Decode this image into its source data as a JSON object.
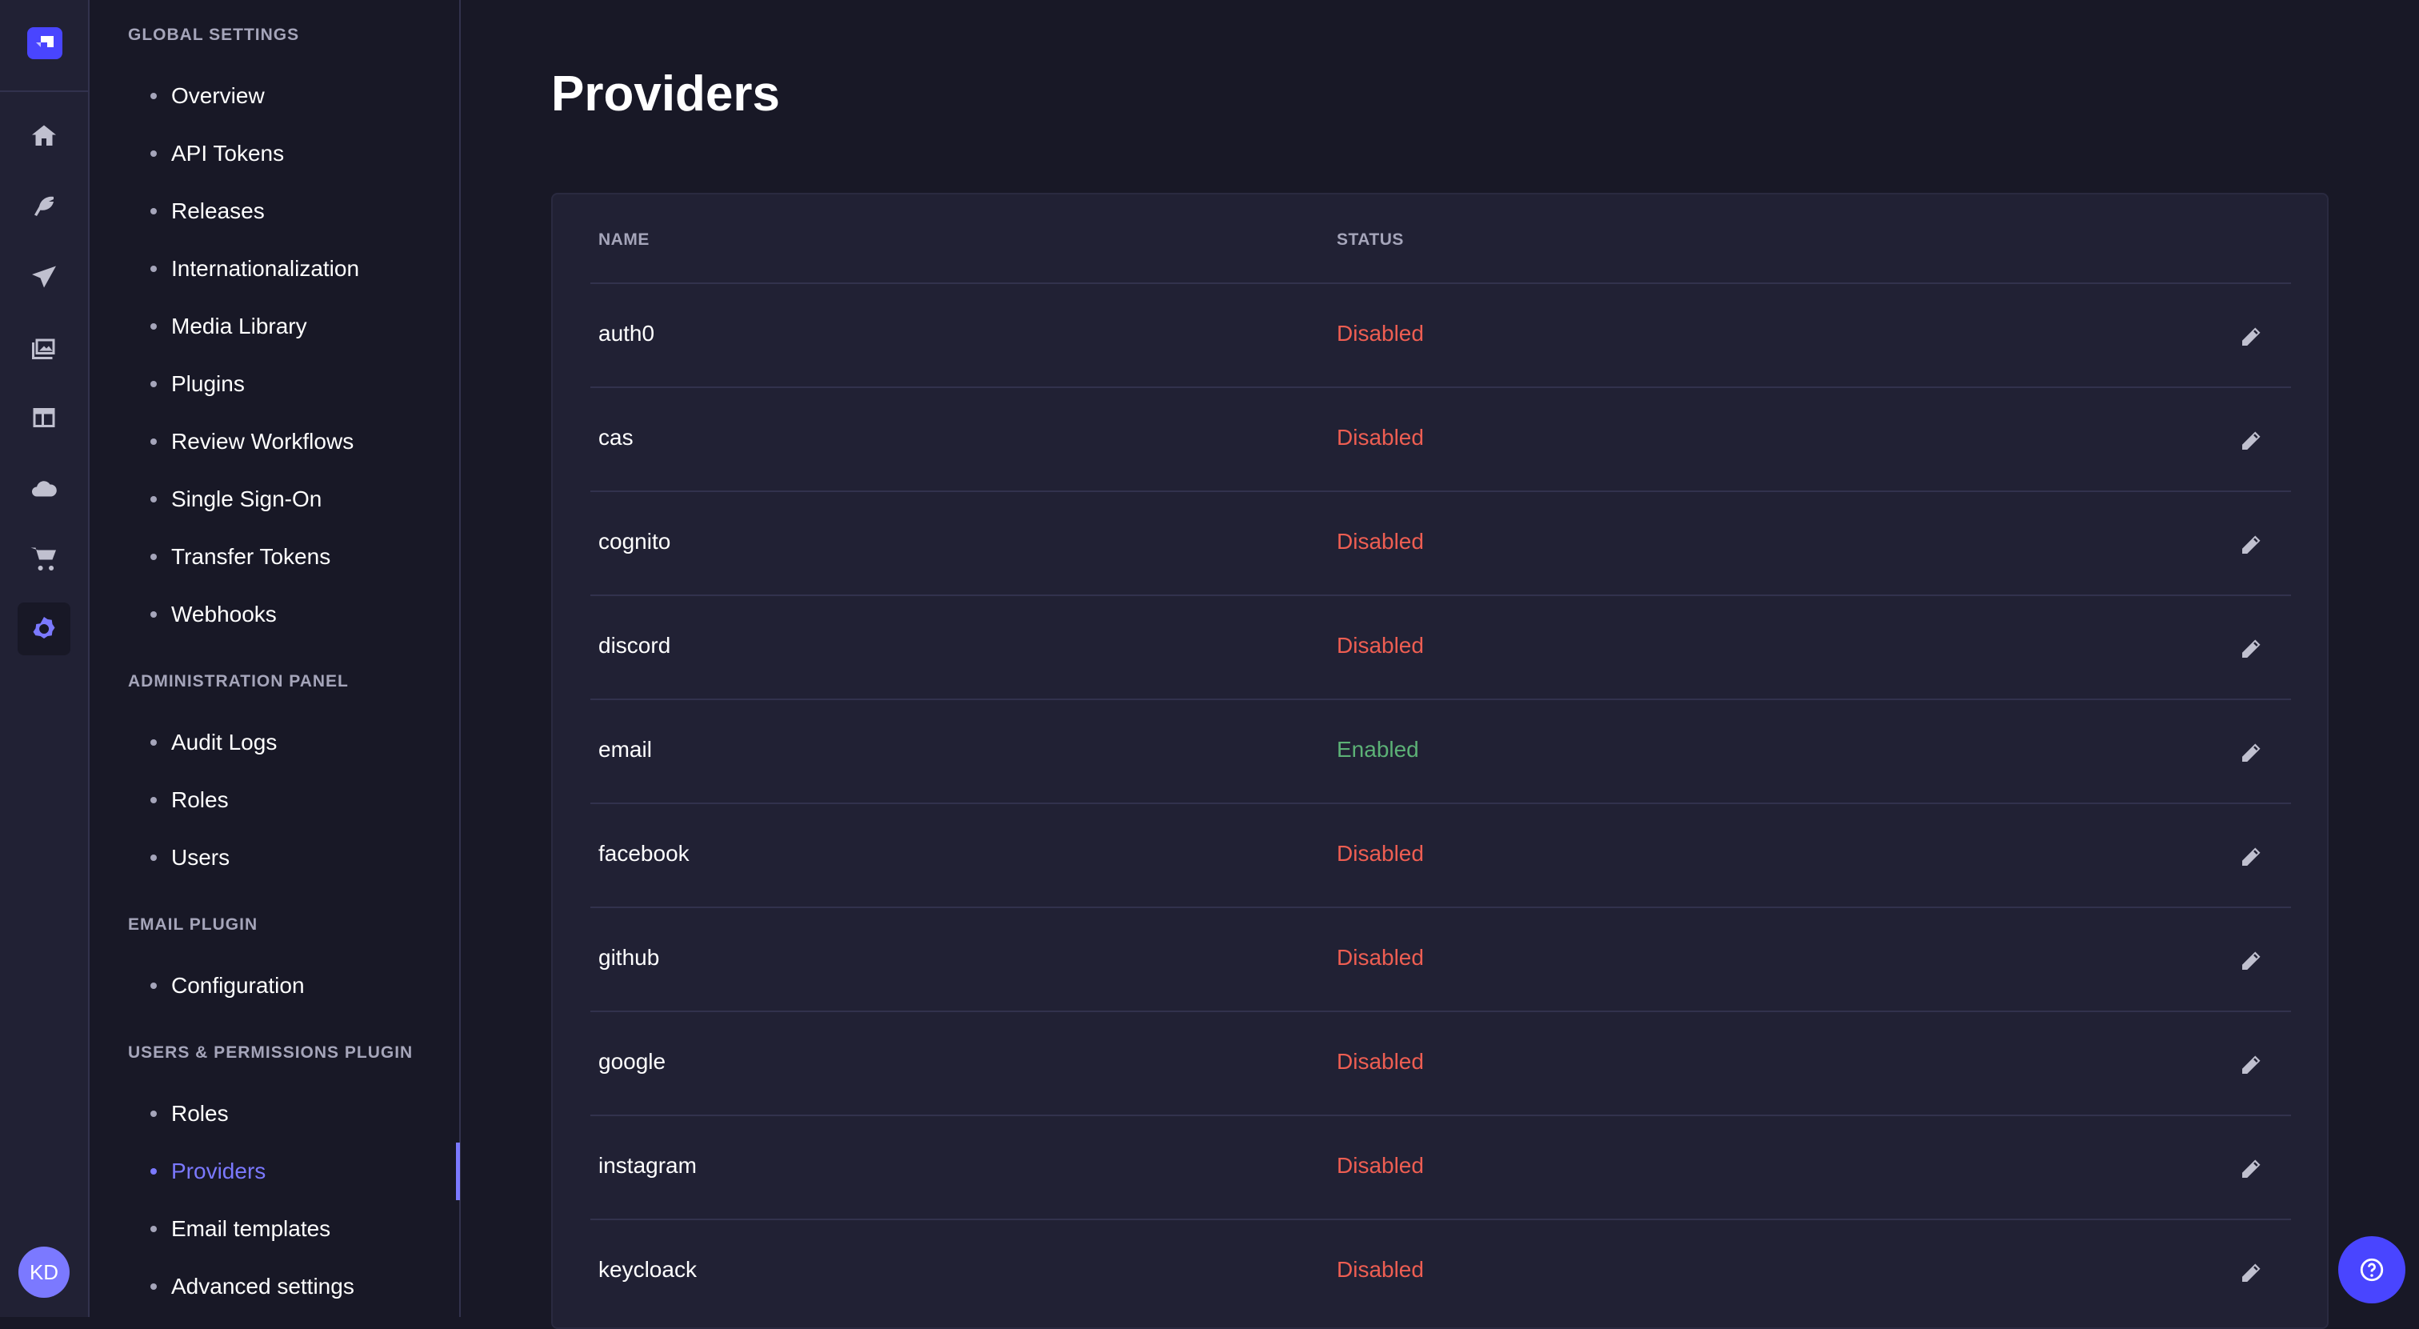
{
  "nav": {
    "icons": [
      "home-icon",
      "feather-icon",
      "paper-plane-icon",
      "images-icon",
      "layout-icon",
      "cloud-icon",
      "cart-icon",
      "gear-icon"
    ],
    "active": "gear-icon",
    "avatar": "KD"
  },
  "subnav": {
    "sections": [
      {
        "title": "GLOBAL SETTINGS",
        "items": [
          "Overview",
          "API Tokens",
          "Releases",
          "Internationalization",
          "Media Library",
          "Plugins",
          "Review Workflows",
          "Single Sign-On",
          "Transfer Tokens",
          "Webhooks"
        ]
      },
      {
        "title": "ADMINISTRATION PANEL",
        "items": [
          "Audit Logs",
          "Roles",
          "Users"
        ]
      },
      {
        "title": "EMAIL PLUGIN",
        "items": [
          "Configuration"
        ]
      },
      {
        "title": "USERS & PERMISSIONS PLUGIN",
        "items": [
          "Roles",
          "Providers",
          "Email templates",
          "Advanced settings"
        ]
      }
    ],
    "active": "Providers"
  },
  "page": {
    "title": "Providers"
  },
  "table": {
    "headers": {
      "name": "NAME",
      "status": "STATUS"
    },
    "rows": [
      {
        "name": "auth0",
        "status": "Disabled"
      },
      {
        "name": "cas",
        "status": "Disabled"
      },
      {
        "name": "cognito",
        "status": "Disabled"
      },
      {
        "name": "discord",
        "status": "Disabled"
      },
      {
        "name": "email",
        "status": "Enabled"
      },
      {
        "name": "facebook",
        "status": "Disabled"
      },
      {
        "name": "github",
        "status": "Disabled"
      },
      {
        "name": "google",
        "status": "Disabled"
      },
      {
        "name": "instagram",
        "status": "Disabled"
      },
      {
        "name": "keycloack",
        "status": "Disabled"
      }
    ]
  },
  "colors": {
    "disabled": "#ee5e52",
    "enabled": "#5cb176",
    "accent": "#7b79ff",
    "brand": "#4945ff"
  }
}
